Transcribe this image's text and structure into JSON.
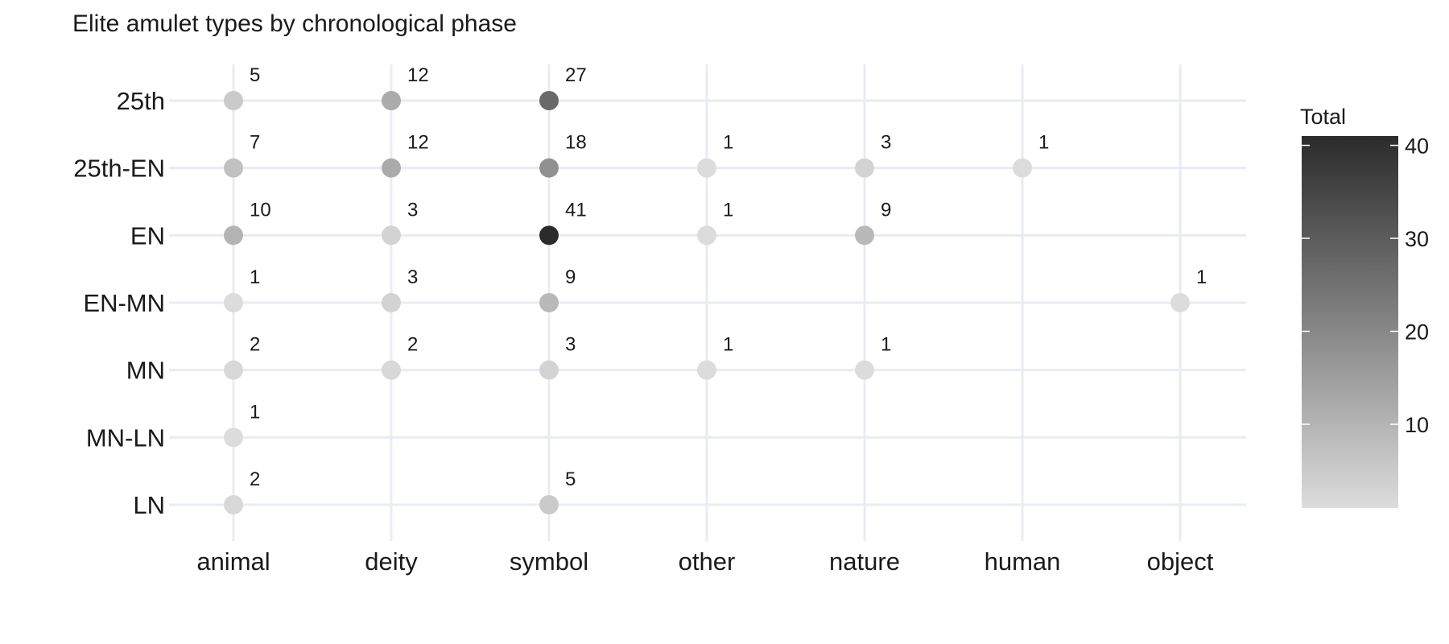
{
  "chart_data": {
    "type": "scatter",
    "title": "Elite amulet types by chronological phase",
    "xlabel": "",
    "ylabel": "",
    "x_categories": [
      "animal",
      "deity",
      "symbol",
      "other",
      "nature",
      "human",
      "object"
    ],
    "y_categories": [
      "25th",
      "25th-EN",
      "EN",
      "EN-MN",
      "MN",
      "MN-LN",
      "LN"
    ],
    "points": [
      {
        "x": "animal",
        "y": "25th",
        "value": 5
      },
      {
        "x": "deity",
        "y": "25th",
        "value": 12
      },
      {
        "x": "symbol",
        "y": "25th",
        "value": 27
      },
      {
        "x": "animal",
        "y": "25th-EN",
        "value": 7
      },
      {
        "x": "deity",
        "y": "25th-EN",
        "value": 12
      },
      {
        "x": "symbol",
        "y": "25th-EN",
        "value": 18
      },
      {
        "x": "other",
        "y": "25th-EN",
        "value": 1
      },
      {
        "x": "nature",
        "y": "25th-EN",
        "value": 3
      },
      {
        "x": "human",
        "y": "25th-EN",
        "value": 1
      },
      {
        "x": "animal",
        "y": "EN",
        "value": 10
      },
      {
        "x": "deity",
        "y": "EN",
        "value": 3
      },
      {
        "x": "symbol",
        "y": "EN",
        "value": 41
      },
      {
        "x": "other",
        "y": "EN",
        "value": 1
      },
      {
        "x": "nature",
        "y": "EN",
        "value": 9
      },
      {
        "x": "animal",
        "y": "EN-MN",
        "value": 1
      },
      {
        "x": "deity",
        "y": "EN-MN",
        "value": 3
      },
      {
        "x": "symbol",
        "y": "EN-MN",
        "value": 9
      },
      {
        "x": "object",
        "y": "EN-MN",
        "value": 1
      },
      {
        "x": "animal",
        "y": "MN",
        "value": 2
      },
      {
        "x": "deity",
        "y": "MN",
        "value": 2
      },
      {
        "x": "symbol",
        "y": "MN",
        "value": 3
      },
      {
        "x": "other",
        "y": "MN",
        "value": 1
      },
      {
        "x": "nature",
        "y": "MN",
        "value": 1
      },
      {
        "x": "animal",
        "y": "MN-LN",
        "value": 1
      },
      {
        "x": "animal",
        "y": "LN",
        "value": 2
      },
      {
        "x": "symbol",
        "y": "LN",
        "value": 5
      }
    ],
    "legend": {
      "title": "Total",
      "position": "right",
      "ticks": [
        10,
        20,
        30,
        40
      ],
      "range": [
        1,
        41
      ],
      "color_low": "#dcdcdc",
      "color_high": "#2b2b2b"
    },
    "grid": true
  }
}
